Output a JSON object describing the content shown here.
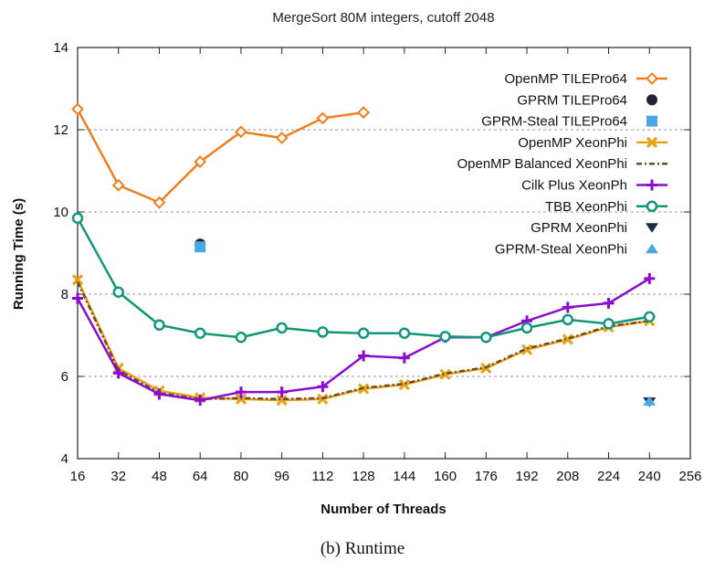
{
  "chart_data": {
    "type": "line",
    "title": "MergeSort 80M integers, cutoff 2048",
    "xlabel": "Number of Threads",
    "ylabel": "Running Time (s)",
    "caption": "(b) Runtime",
    "xlim": [
      16,
      256
    ],
    "ylim": [
      4,
      14
    ],
    "xticks": [
      16,
      32,
      48,
      64,
      80,
      96,
      112,
      128,
      144,
      160,
      176,
      192,
      208,
      224,
      240,
      256
    ],
    "yticks": [
      4,
      6,
      8,
      10,
      12,
      14
    ],
    "grid": "horizontal dashed",
    "legend_position": "top-right",
    "series": [
      {
        "name": "OpenMP TILEPro64",
        "color": "#f07d1e",
        "marker": "diamond-open",
        "line": "solid",
        "x": [
          16,
          32,
          48,
          64,
          80,
          96,
          112,
          128
        ],
        "y": [
          12.5,
          10.65,
          10.23,
          11.22,
          11.95,
          11.8,
          12.28,
          12.42
        ]
      },
      {
        "name": "GPRM TILEPro64",
        "color": "#1f2633",
        "marker": "circle-filled",
        "line": "none",
        "x": [
          64
        ],
        "y": [
          9.22
        ]
      },
      {
        "name": "GPRM-Steal TILEPro64",
        "color": "#4aa8e0",
        "marker": "square-filled",
        "line": "none",
        "x": [
          64
        ],
        "y": [
          9.15
        ]
      },
      {
        "name": "OpenMP XeonPhi",
        "color": "#e8a317",
        "marker": "x",
        "line": "solid",
        "x": [
          16,
          32,
          48,
          64,
          80,
          96,
          112,
          128,
          144,
          160,
          176,
          192,
          208,
          224,
          240
        ],
        "y": [
          8.35,
          6.2,
          5.65,
          5.48,
          5.45,
          5.42,
          5.45,
          5.7,
          5.8,
          6.05,
          6.2,
          6.65,
          6.9,
          7.2,
          7.35
        ]
      },
      {
        "name": "OpenMP Balanced XeonPhi",
        "color": "#6b4c2a",
        "marker": "none",
        "line": "dash-dot",
        "x": [
          16,
          32,
          48,
          64,
          80,
          96,
          112,
          128,
          144,
          160,
          176,
          192,
          208,
          224,
          240
        ],
        "y": [
          8.3,
          6.15,
          5.6,
          5.45,
          5.47,
          5.45,
          5.47,
          5.72,
          5.82,
          6.07,
          6.22,
          6.68,
          6.92,
          7.22,
          7.35
        ]
      },
      {
        "name": "Cilk Plus XeonPh",
        "color": "#8a0ccf",
        "marker": "plus",
        "line": "solid",
        "x": [
          16,
          32,
          48,
          64,
          80,
          96,
          112,
          128,
          144,
          160,
          176,
          192,
          208,
          224,
          240
        ],
        "y": [
          7.9,
          6.08,
          5.57,
          5.42,
          5.62,
          5.62,
          5.75,
          6.5,
          6.45,
          6.95,
          6.95,
          7.35,
          7.68,
          7.78,
          8.38
        ]
      },
      {
        "name": "TBB XeonPhi",
        "color": "#12967a",
        "marker": "circle-open",
        "line": "solid",
        "x": [
          16,
          32,
          48,
          64,
          80,
          96,
          112,
          128,
          144,
          160,
          176,
          192,
          208,
          224,
          240
        ],
        "y": [
          9.85,
          8.05,
          7.25,
          7.05,
          6.95,
          7.18,
          7.08,
          7.05,
          7.05,
          6.97,
          6.95,
          7.18,
          7.38,
          7.28,
          7.45
        ]
      },
      {
        "name": "GPRM XeonPhi",
        "color": "#1f2a44",
        "marker": "triangle-down",
        "line": "none",
        "x": [
          240
        ],
        "y": [
          5.38
        ]
      },
      {
        "name": "GPRM-Steal XeonPhi",
        "color": "#4aa8e0",
        "marker": "triangle-up",
        "line": "none",
        "x": [
          240
        ],
        "y": [
          5.4
        ]
      }
    ]
  }
}
